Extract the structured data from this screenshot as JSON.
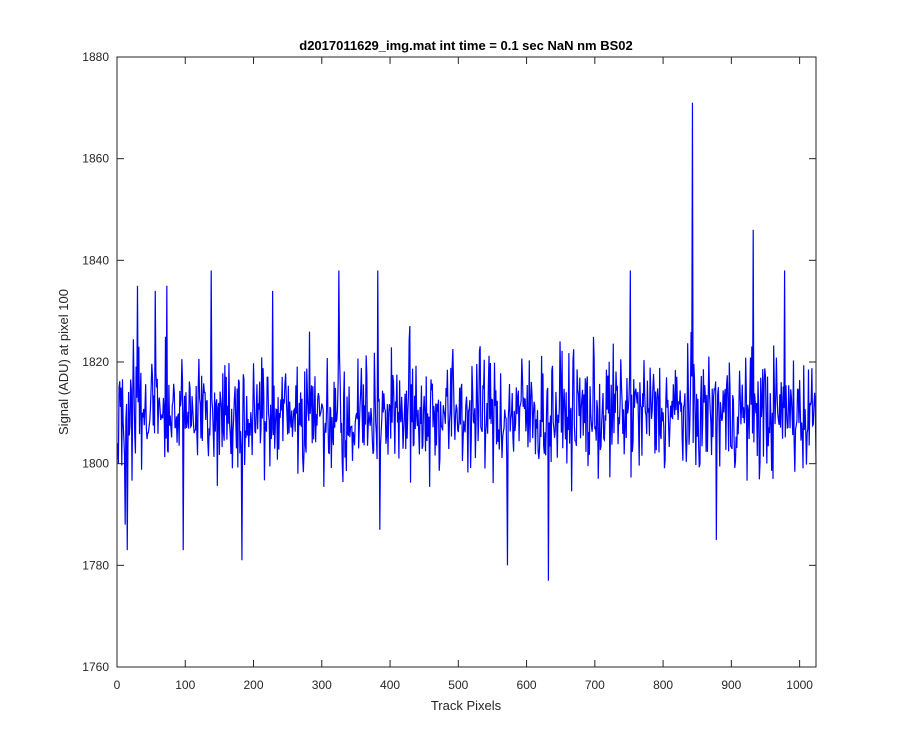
{
  "chart_data": {
    "type": "line",
    "title": "d2017011629_img.mat int time = 0.1 sec  NaN nm BS02",
    "xlabel": "Track Pixels",
    "ylabel": "Signal (ADU) at pixel 100",
    "xlim": [
      0,
      1024
    ],
    "ylim": [
      1760,
      1880
    ],
    "xticks": [
      0,
      100,
      200,
      300,
      400,
      500,
      600,
      700,
      800,
      900,
      1000
    ],
    "yticks": [
      1760,
      1780,
      1800,
      1820,
      1840,
      1860,
      1880
    ],
    "grid": false,
    "legend": "none",
    "series": [
      {
        "color": "#0000ff",
        "x_start": 1,
        "x_step": 1,
        "baseline": 1810,
        "noise_amplitude": 12,
        "noise_seed": 1629,
        "extremes": [
          {
            "x": 12,
            "y": 1788
          },
          {
            "x": 15,
            "y": 1783
          },
          {
            "x": 30,
            "y": 1835
          },
          {
            "x": 56,
            "y": 1834
          },
          {
            "x": 73,
            "y": 1835
          },
          {
            "x": 97,
            "y": 1783
          },
          {
            "x": 138,
            "y": 1838
          },
          {
            "x": 183,
            "y": 1781
          },
          {
            "x": 228,
            "y": 1834
          },
          {
            "x": 325,
            "y": 1838
          },
          {
            "x": 382,
            "y": 1838
          },
          {
            "x": 385,
            "y": 1787
          },
          {
            "x": 572,
            "y": 1780
          },
          {
            "x": 632,
            "y": 1777
          },
          {
            "x": 752,
            "y": 1838
          },
          {
            "x": 843,
            "y": 1871
          },
          {
            "x": 878,
            "y": 1785
          },
          {
            "x": 932,
            "y": 1846
          },
          {
            "x": 978,
            "y": 1838
          }
        ]
      }
    ]
  }
}
